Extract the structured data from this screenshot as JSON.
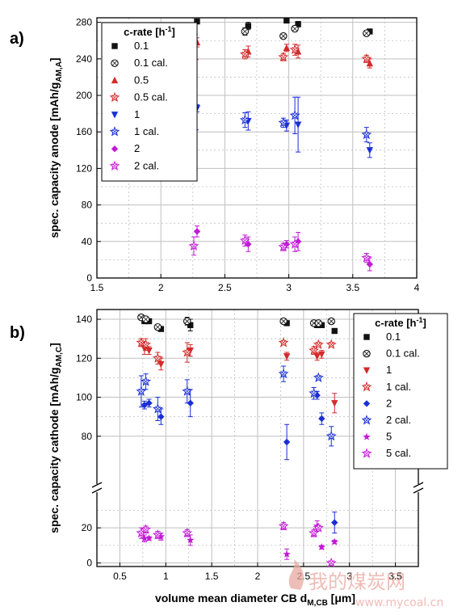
{
  "panels": {
    "a": {
      "label": "a)"
    },
    "b": {
      "label": "b)"
    }
  },
  "watermark": {
    "cn": "我的煤炭网",
    "url": "www.mycoal.cn"
  },
  "colors": {
    "black": "#111111",
    "red": "#d42a2a",
    "blue": "#1b2fd6",
    "magenta": "#c21ad6",
    "grid": "#bfbfbf"
  },
  "chart_data": [
    {
      "panel": "a",
      "type": "scatter",
      "title": "",
      "xlabel": "",
      "ylabel": "spec. capacity anode [mAh/g",
      "ylabel_sub": "AM,A",
      "ylabel_end": "]",
      "xlim": [
        1.5,
        4.0
      ],
      "ylim": [
        0,
        285
      ],
      "xticks": [
        1.5,
        2.0,
        2.5,
        3.0,
        3.5,
        4.0
      ],
      "yticks": [
        0,
        40,
        80,
        120,
        160,
        200,
        240,
        280
      ],
      "grid": true,
      "legend": {
        "title": "c-rate [h",
        "title_sup": "-1",
        "title_end": "]",
        "position": "top-left"
      },
      "x": [
        2.27,
        2.67,
        2.97,
        3.06,
        3.62
      ],
      "series": [
        {
          "name": "0.1",
          "color": "#111111",
          "marker": "square",
          "values": [
            281,
            276,
            282,
            278,
            270
          ],
          "err": [
            0,
            4,
            0,
            3,
            2
          ]
        },
        {
          "name": "0.1 cal.",
          "color": "#111111",
          "marker": "circle-open",
          "values": [
            267,
            270,
            265,
            273,
            268
          ],
          "err": [
            3,
            4,
            2,
            3,
            2
          ]
        },
        {
          "name": "0.5",
          "color": "#d42a2a",
          "marker": "triangle-up",
          "values": [
            258,
            248,
            252,
            248,
            235
          ],
          "err": [
            5,
            6,
            4,
            7,
            5
          ]
        },
        {
          "name": "0.5 cal.",
          "color": "#d42a2a",
          "marker": "star-open",
          "values": [
            238,
            245,
            242,
            250,
            240
          ],
          "err": [
            6,
            5,
            4,
            6,
            4
          ]
        },
        {
          "name": "1",
          "color": "#1b2fd6",
          "marker": "triangle-down",
          "values": [
            186,
            172,
            167,
            168,
            140
          ],
          "err": [
            4,
            10,
            6,
            30,
            8
          ]
        },
        {
          "name": "1 cal.",
          "color": "#1b2fd6",
          "marker": "star-open",
          "values": [
            161,
            173,
            170,
            178,
            157
          ],
          "err": [
            12,
            8,
            5,
            20,
            8
          ]
        },
        {
          "name": "2",
          "color": "#c21ad6",
          "marker": "diamond",
          "values": [
            51,
            37,
            37,
            40,
            15
          ],
          "err": [
            6,
            8,
            4,
            10,
            7
          ]
        },
        {
          "name": "2 cal.",
          "color": "#c21ad6",
          "marker": "star-open",
          "values": [
            35,
            41,
            34,
            37,
            22
          ],
          "err": [
            10,
            6,
            4,
            8,
            5
          ]
        }
      ]
    },
    {
      "panel": "b",
      "type": "scatter",
      "title": "",
      "xlabel": "volume mean diameter CB d",
      "xlabel_sub": "M,CB",
      "xlabel_end": " [μm]",
      "ylabel": "spec. capacity cathode  [mAh/g",
      "ylabel_sub": "AM,C",
      "ylabel_end": "]",
      "xlim": [
        0.25,
        3.75
      ],
      "ylim_lower": [
        -2,
        38
      ],
      "ylim_upper": [
        60,
        145
      ],
      "axis_break": true,
      "xticks": [
        0.5,
        1.0,
        1.5,
        2.0,
        2.5,
        3.0,
        3.5
      ],
      "yticks_lower": [
        0,
        20
      ],
      "yticks_upper": [
        80,
        100,
        120,
        140
      ],
      "grid": true,
      "legend": {
        "title": "c-rate [h",
        "title_sup": "-1",
        "title_end": "]",
        "position": "top-right"
      },
      "x": [
        0.75,
        0.8,
        0.93,
        1.25,
        2.3,
        2.63,
        2.68,
        2.82
      ],
      "series": [
        {
          "name": "0.1",
          "color": "#111111",
          "marker": "square",
          "values": [
            139,
            139,
            135,
            137,
            138,
            137,
            137,
            134
          ],
          "err": [
            1,
            1,
            1,
            3,
            1,
            1,
            1,
            1
          ]
        },
        {
          "name": "0.1 cal.",
          "color": "#111111",
          "marker": "circle-open",
          "values": [
            141,
            140,
            136,
            139,
            139,
            138,
            138,
            139
          ],
          "err": [
            1,
            1,
            1,
            2,
            1,
            1,
            1,
            1
          ]
        },
        {
          "name": "1",
          "color": "#d42a2a",
          "marker": "triangle-down",
          "values": [
            125,
            124,
            117,
            124,
            121,
            121,
            122,
            97
          ],
          "err": [
            3,
            2,
            3,
            3,
            2,
            2,
            2,
            5
          ]
        },
        {
          "name": "1 cal.",
          "color": "#d42a2a",
          "marker": "star-open",
          "values": [
            128,
            127,
            120,
            123,
            128,
            124,
            127,
            127
          ],
          "err": [
            2,
            3,
            3,
            5,
            1,
            2,
            1,
            1
          ]
        },
        {
          "name": "2",
          "color": "#1b2fd6",
          "marker": "diamond",
          "values": [
            96,
            97,
            90,
            97,
            77,
            101,
            89,
            23
          ],
          "err": [
            2,
            2,
            4,
            7,
            9,
            2,
            3,
            6
          ]
        },
        {
          "name": "2 cal.",
          "color": "#1b2fd6",
          "marker": "star-open",
          "values": [
            103,
            108,
            94,
            103,
            112,
            102,
            110,
            80
          ],
          "err": [
            8,
            4,
            6,
            6,
            4,
            3,
            1,
            5
          ]
        },
        {
          "name": "5",
          "color": "#c21ad6",
          "marker": "star",
          "values": [
            14,
            14,
            15,
            13,
            5,
            21,
            9,
            12
          ],
          "err": [
            2,
            1,
            2,
            3,
            3,
            3,
            1,
            1
          ]
        },
        {
          "name": "5 cal.",
          "color": "#c21ad6",
          "marker": "star-open",
          "values": [
            17,
            19,
            16,
            17,
            21,
            17,
            20,
            0
          ],
          "err": [
            3,
            2,
            2,
            2,
            2,
            2,
            1,
            1
          ]
        }
      ]
    }
  ]
}
